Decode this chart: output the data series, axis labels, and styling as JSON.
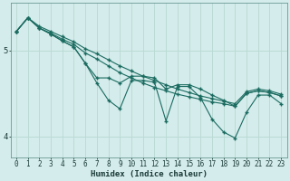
{
  "xlabel": "Humidex (Indice chaleur)",
  "background_color": "#d4eceb",
  "grid_color": "#b8d8d4",
  "line_color": "#1a6b60",
  "xlim": [
    -0.5,
    23.5
  ],
  "ylim": [
    3.75,
    5.55
  ],
  "yticks": [
    4,
    5
  ],
  "xticks": [
    0,
    1,
    2,
    3,
    4,
    5,
    6,
    7,
    8,
    9,
    10,
    11,
    12,
    13,
    14,
    15,
    16,
    17,
    18,
    19,
    20,
    21,
    22,
    23
  ],
  "series": [
    {
      "x": [
        0,
        1,
        2,
        3,
        4,
        5,
        6,
        7,
        8,
        9,
        10,
        11,
        12,
        13,
        14,
        15,
        16,
        17,
        18,
        19,
        20,
        21,
        22,
        23
      ],
      "y": [
        5.22,
        5.38,
        5.28,
        5.22,
        5.16,
        5.1,
        5.02,
        4.96,
        4.89,
        4.82,
        4.76,
        4.7,
        4.65,
        4.6,
        4.55,
        4.51,
        4.47,
        4.44,
        4.41,
        4.38,
        4.52,
        4.55,
        4.53,
        4.49
      ]
    },
    {
      "x": [
        0,
        1,
        2,
        3,
        4,
        5,
        6,
        7,
        8,
        9,
        10,
        11,
        12,
        13,
        14,
        15,
        16,
        17,
        18,
        19,
        20,
        21,
        22,
        23
      ],
      "y": [
        5.22,
        5.38,
        5.26,
        5.2,
        5.13,
        5.07,
        4.97,
        4.9,
        4.82,
        4.74,
        4.68,
        4.62,
        4.57,
        4.53,
        4.49,
        4.46,
        4.43,
        4.4,
        4.38,
        4.35,
        4.5,
        4.53,
        4.51,
        4.47
      ]
    },
    {
      "x": [
        0,
        1,
        2,
        3,
        4,
        5,
        6,
        7,
        8,
        9,
        10,
        11,
        12,
        13,
        14,
        15,
        16,
        17,
        18,
        19,
        20,
        21,
        22,
        23
      ],
      "y": [
        5.22,
        5.38,
        5.26,
        5.19,
        5.11,
        5.04,
        4.85,
        4.68,
        4.68,
        4.62,
        4.7,
        4.7,
        4.68,
        4.55,
        4.6,
        4.6,
        4.55,
        4.48,
        4.42,
        4.35,
        4.5,
        4.53,
        4.51,
        4.47
      ]
    },
    {
      "x": [
        0,
        1,
        2,
        3,
        4,
        5,
        6,
        7,
        8,
        9,
        10,
        11,
        12,
        13,
        14,
        15,
        16,
        17,
        18,
        19,
        20,
        21,
        22,
        23
      ],
      "y": [
        5.22,
        5.38,
        5.26,
        5.19,
        5.11,
        5.04,
        4.85,
        4.62,
        4.42,
        4.32,
        4.65,
        4.65,
        4.63,
        4.18,
        4.58,
        4.58,
        4.45,
        4.2,
        4.05,
        3.98,
        4.28,
        4.48,
        4.48,
        4.38
      ]
    }
  ]
}
